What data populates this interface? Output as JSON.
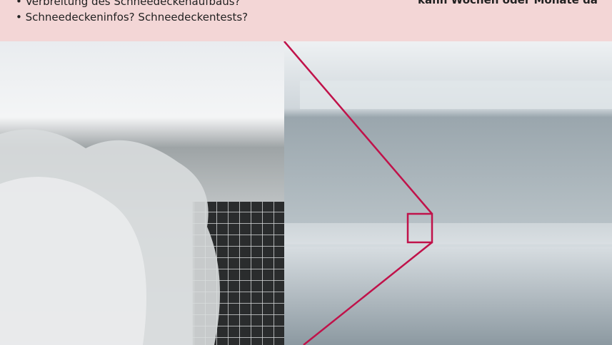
{
  "header": {
    "bullets": [
      "• Verbreitung des Schneedeckenaufbaus?",
      "• Schneedeckeninfos? Schneedeckentests?"
    ],
    "note": "kann Wochen oder Monate da"
  }
}
